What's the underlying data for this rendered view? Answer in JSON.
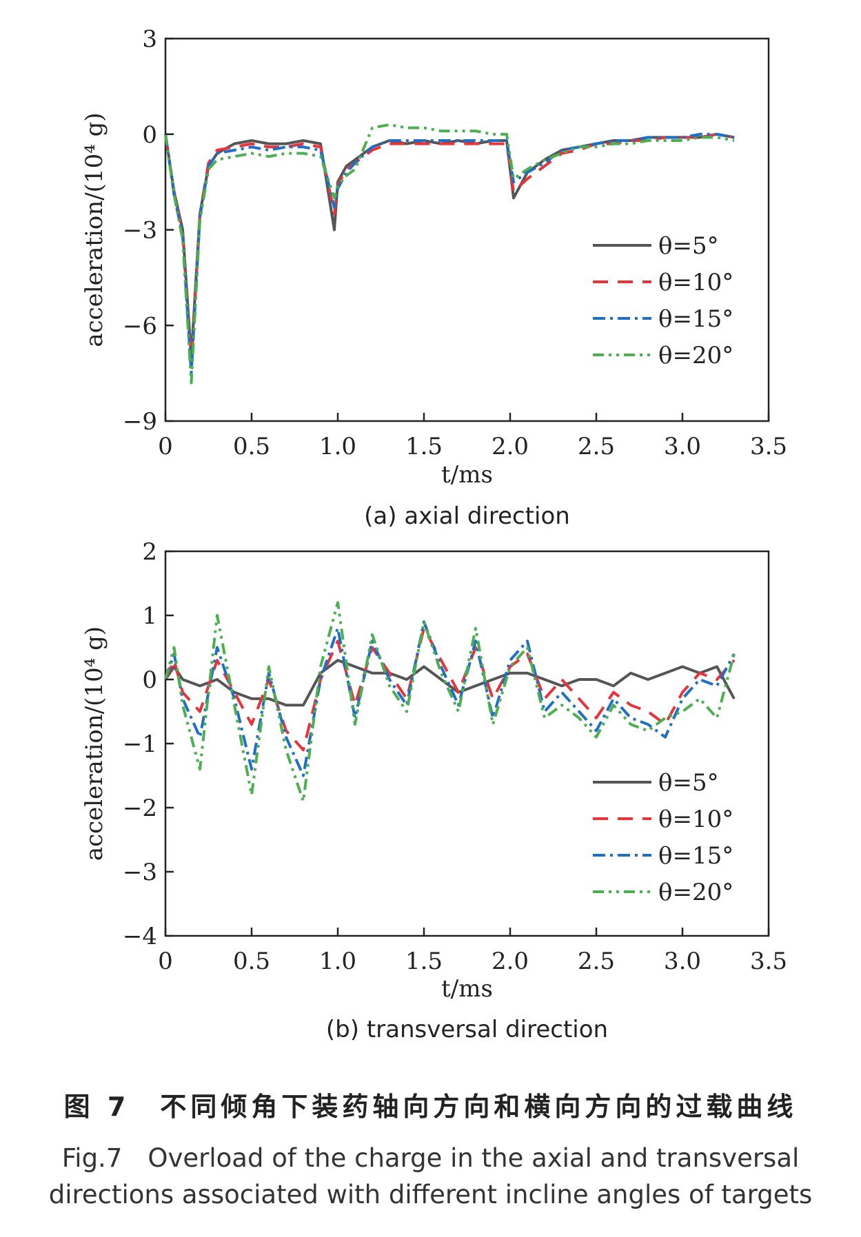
{
  "chart_data": [
    {
      "type": "line",
      "subtitle": "(a) axial direction",
      "xlabel": "t/ms",
      "ylabel": "acceleration/(10⁴ g)",
      "xlim": [
        0,
        3.5
      ],
      "ylim": [
        -9,
        3
      ],
      "xticks": [
        "0",
        "0.5",
        "1.0",
        "1.5",
        "2.0",
        "2.5",
        "3.0",
        "3.5"
      ],
      "yticks": [
        "3",
        "0",
        "−3",
        "−6",
        "−9"
      ],
      "ytick_values": [
        3,
        0,
        -3,
        -6,
        -9
      ],
      "xtick_values": [
        0,
        0.5,
        1.0,
        1.5,
        2.0,
        2.5,
        3.0,
        3.5
      ],
      "legend_position": "lower-right",
      "grid": false,
      "series": [
        {
          "name": "θ=5°",
          "color": "#555555",
          "dash": "solid",
          "x": [
            0,
            0.05,
            0.1,
            0.15,
            0.2,
            0.25,
            0.3,
            0.4,
            0.5,
            0.6,
            0.7,
            0.8,
            0.9,
            0.98,
            1.0,
            1.05,
            1.1,
            1.2,
            1.3,
            1.4,
            1.5,
            1.6,
            1.7,
            1.8,
            1.9,
            1.98,
            2.02,
            2.1,
            2.2,
            2.3,
            2.4,
            2.5,
            2.6,
            2.7,
            2.8,
            2.9,
            3.0,
            3.1,
            3.2,
            3.3
          ],
          "y": [
            0,
            -1.8,
            -3.0,
            -7.0,
            -2.5,
            -1.0,
            -0.6,
            -0.3,
            -0.2,
            -0.3,
            -0.3,
            -0.2,
            -0.3,
            -3.0,
            -1.5,
            -1.0,
            -0.8,
            -0.4,
            -0.2,
            -0.3,
            -0.2,
            -0.3,
            -0.2,
            -0.3,
            -0.2,
            -0.2,
            -2.0,
            -1.2,
            -0.8,
            -0.5,
            -0.4,
            -0.3,
            -0.2,
            -0.2,
            -0.1,
            -0.1,
            -0.1,
            -0.1,
            0.0,
            -0.1
          ]
        },
        {
          "name": "θ=10°",
          "color": "#e8333a",
          "dash": "long-dash",
          "x": [
            0,
            0.05,
            0.1,
            0.15,
            0.2,
            0.25,
            0.3,
            0.4,
            0.5,
            0.6,
            0.7,
            0.8,
            0.9,
            0.98,
            1.0,
            1.05,
            1.1,
            1.2,
            1.3,
            1.4,
            1.5,
            1.6,
            1.7,
            1.8,
            1.9,
            1.98,
            2.02,
            2.1,
            2.2,
            2.3,
            2.4,
            2.5,
            2.6,
            2.7,
            2.8,
            2.9,
            3.0,
            3.1,
            3.2,
            3.3
          ],
          "y": [
            0,
            -1.8,
            -3.1,
            -7.2,
            -2.5,
            -0.9,
            -0.5,
            -0.4,
            -0.3,
            -0.4,
            -0.4,
            -0.3,
            -0.4,
            -2.5,
            -1.6,
            -1.1,
            -0.9,
            -0.5,
            -0.3,
            -0.3,
            -0.3,
            -0.3,
            -0.3,
            -0.3,
            -0.3,
            -0.3,
            -1.8,
            -1.4,
            -1.0,
            -0.6,
            -0.5,
            -0.3,
            -0.3,
            -0.2,
            -0.2,
            -0.1,
            -0.1,
            -0.1,
            0.0,
            -0.1
          ]
        },
        {
          "name": "θ=15°",
          "color": "#1f6fc6",
          "dash": "dash-dot",
          "x": [
            0,
            0.05,
            0.1,
            0.15,
            0.2,
            0.25,
            0.3,
            0.4,
            0.5,
            0.6,
            0.7,
            0.8,
            0.9,
            0.98,
            1.0,
            1.05,
            1.1,
            1.2,
            1.3,
            1.4,
            1.5,
            1.6,
            1.7,
            1.8,
            1.9,
            1.98,
            2.02,
            2.1,
            2.2,
            2.3,
            2.4,
            2.5,
            2.6,
            2.7,
            2.8,
            2.9,
            3.0,
            3.1,
            3.2,
            3.3
          ],
          "y": [
            0,
            -1.9,
            -3.2,
            -7.5,
            -2.6,
            -1.0,
            -0.6,
            -0.5,
            -0.4,
            -0.5,
            -0.4,
            -0.4,
            -0.5,
            -2.3,
            -1.7,
            -1.2,
            -0.9,
            -0.4,
            -0.2,
            -0.2,
            -0.2,
            -0.2,
            -0.2,
            -0.2,
            -0.2,
            -0.2,
            -1.5,
            -1.2,
            -0.9,
            -0.5,
            -0.4,
            -0.3,
            -0.2,
            -0.2,
            -0.1,
            -0.1,
            -0.1,
            0.0,
            0.0,
            -0.1
          ]
        },
        {
          "name": "θ=20°",
          "color": "#4caf50",
          "dash": "dash-dot-dot",
          "x": [
            0,
            0.05,
            0.1,
            0.15,
            0.2,
            0.25,
            0.3,
            0.4,
            0.5,
            0.6,
            0.7,
            0.8,
            0.9,
            0.98,
            1.0,
            1.05,
            1.1,
            1.2,
            1.3,
            1.4,
            1.5,
            1.6,
            1.7,
            1.8,
            1.9,
            1.98,
            2.02,
            2.1,
            2.2,
            2.3,
            2.4,
            2.5,
            2.6,
            2.7,
            2.8,
            2.9,
            3.0,
            3.1,
            3.2,
            3.3
          ],
          "y": [
            0,
            -1.9,
            -3.3,
            -7.8,
            -2.7,
            -1.1,
            -0.8,
            -0.7,
            -0.6,
            -0.7,
            -0.6,
            -0.6,
            -0.7,
            -2.0,
            -1.6,
            -1.3,
            -1.1,
            0.2,
            0.3,
            0.2,
            0.2,
            0.1,
            0.1,
            0.1,
            0.0,
            0.0,
            -1.4,
            -1.1,
            -0.8,
            -0.6,
            -0.4,
            -0.4,
            -0.3,
            -0.3,
            -0.2,
            -0.2,
            -0.2,
            -0.1,
            -0.1,
            -0.2
          ]
        }
      ]
    },
    {
      "type": "line",
      "subtitle": "(b) transversal direction",
      "xlabel": "t/ms",
      "ylabel": "acceleration/(10⁴ g)",
      "xlim": [
        0,
        3.5
      ],
      "ylim": [
        -4,
        2
      ],
      "xticks": [
        "0",
        "0.5",
        "1.0",
        "1.5",
        "2.0",
        "2.5",
        "3.0",
        "3.5"
      ],
      "yticks": [
        "2",
        "1",
        "0",
        "−1",
        "−2",
        "−3",
        "−4"
      ],
      "ytick_values": [
        2,
        1,
        0,
        -1,
        -2,
        -3,
        -4
      ],
      "xtick_values": [
        0,
        0.5,
        1.0,
        1.5,
        2.0,
        2.5,
        3.0,
        3.5
      ],
      "legend_position": "lower-right",
      "grid": false,
      "series": [
        {
          "name": "θ=5°",
          "color": "#555555",
          "dash": "solid",
          "x": [
            0,
            0.05,
            0.1,
            0.2,
            0.3,
            0.4,
            0.5,
            0.6,
            0.7,
            0.8,
            0.9,
            1.0,
            1.1,
            1.2,
            1.3,
            1.4,
            1.5,
            1.6,
            1.7,
            1.8,
            1.9,
            2.0,
            2.1,
            2.2,
            2.3,
            2.4,
            2.5,
            2.6,
            2.7,
            2.8,
            2.9,
            3.0,
            3.1,
            3.2,
            3.3
          ],
          "y": [
            0,
            0.2,
            0.0,
            -0.1,
            0.0,
            -0.2,
            -0.3,
            -0.3,
            -0.4,
            -0.4,
            0.1,
            0.3,
            0.2,
            0.1,
            0.1,
            0.0,
            0.2,
            0.0,
            -0.2,
            -0.1,
            0.0,
            0.1,
            0.1,
            0.0,
            -0.1,
            0.0,
            0.0,
            -0.1,
            0.1,
            0.0,
            0.1,
            0.2,
            0.1,
            0.2,
            -0.3
          ]
        },
        {
          "name": "θ=10°",
          "color": "#e8333a",
          "dash": "long-dash",
          "x": [
            0,
            0.05,
            0.1,
            0.2,
            0.3,
            0.4,
            0.5,
            0.6,
            0.7,
            0.8,
            0.9,
            1.0,
            1.1,
            1.2,
            1.3,
            1.4,
            1.5,
            1.6,
            1.7,
            1.8,
            1.9,
            2.0,
            2.1,
            2.2,
            2.3,
            2.4,
            2.5,
            2.6,
            2.7,
            2.8,
            2.9,
            3.0,
            3.1,
            3.2,
            3.3
          ],
          "y": [
            0,
            0.3,
            -0.2,
            -0.5,
            0.3,
            -0.2,
            -0.7,
            0.0,
            -0.8,
            -1.1,
            0.0,
            0.6,
            -0.4,
            0.5,
            0.1,
            -0.3,
            0.8,
            0.3,
            -0.2,
            0.5,
            -0.3,
            0.2,
            0.4,
            -0.3,
            0.0,
            -0.3,
            -0.6,
            -0.2,
            -0.4,
            -0.5,
            -0.7,
            -0.2,
            0.1,
            0.0,
            0.3
          ]
        },
        {
          "name": "θ=15°",
          "color": "#1f6fc6",
          "dash": "dash-dot",
          "x": [
            0,
            0.05,
            0.1,
            0.2,
            0.3,
            0.4,
            0.5,
            0.6,
            0.7,
            0.8,
            0.9,
            1.0,
            1.1,
            1.2,
            1.3,
            1.4,
            1.5,
            1.6,
            1.7,
            1.8,
            1.9,
            2.0,
            2.1,
            2.2,
            2.3,
            2.4,
            2.5,
            2.6,
            2.7,
            2.8,
            2.9,
            3.0,
            3.1,
            3.2,
            3.3
          ],
          "y": [
            0,
            0.4,
            -0.3,
            -0.9,
            0.5,
            -0.3,
            -1.4,
            0.1,
            -0.9,
            -1.5,
            0.0,
            0.8,
            -0.6,
            0.6,
            0.0,
            -0.4,
            0.9,
            0.2,
            -0.4,
            0.6,
            -0.6,
            0.3,
            0.6,
            -0.5,
            -0.2,
            -0.5,
            -0.8,
            -0.3,
            -0.6,
            -0.7,
            -0.9,
            -0.3,
            0.0,
            -0.1,
            0.4
          ]
        },
        {
          "name": "θ=20°",
          "color": "#4caf50",
          "dash": "dash-dot-dot",
          "x": [
            0,
            0.05,
            0.1,
            0.2,
            0.3,
            0.4,
            0.5,
            0.6,
            0.7,
            0.8,
            0.9,
            1.0,
            1.1,
            1.2,
            1.3,
            1.4,
            1.5,
            1.6,
            1.7,
            1.8,
            1.9,
            2.0,
            2.1,
            2.2,
            2.3,
            2.4,
            2.5,
            2.6,
            2.7,
            2.8,
            2.9,
            3.0,
            3.1,
            3.2,
            3.3
          ],
          "y": [
            0,
            0.5,
            -0.4,
            -1.4,
            1.0,
            -0.4,
            -1.8,
            0.2,
            -1.1,
            -1.9,
            0.2,
            1.2,
            -0.7,
            0.7,
            -0.1,
            -0.5,
            0.9,
            0.1,
            -0.5,
            0.8,
            -0.7,
            0.2,
            0.5,
            -0.6,
            -0.4,
            -0.6,
            -0.9,
            -0.4,
            -0.7,
            -0.8,
            -0.6,
            -0.5,
            -0.3,
            -0.6,
            0.4
          ]
        }
      ]
    }
  ],
  "caption": {
    "cn": "图 7　不同倾角下装药轴向方向和横向方向的过载曲线",
    "en_line1": "Fig.7　Overload of the charge in the axial and transversal",
    "en_line2": "directions associated with different incline angles of targets"
  }
}
